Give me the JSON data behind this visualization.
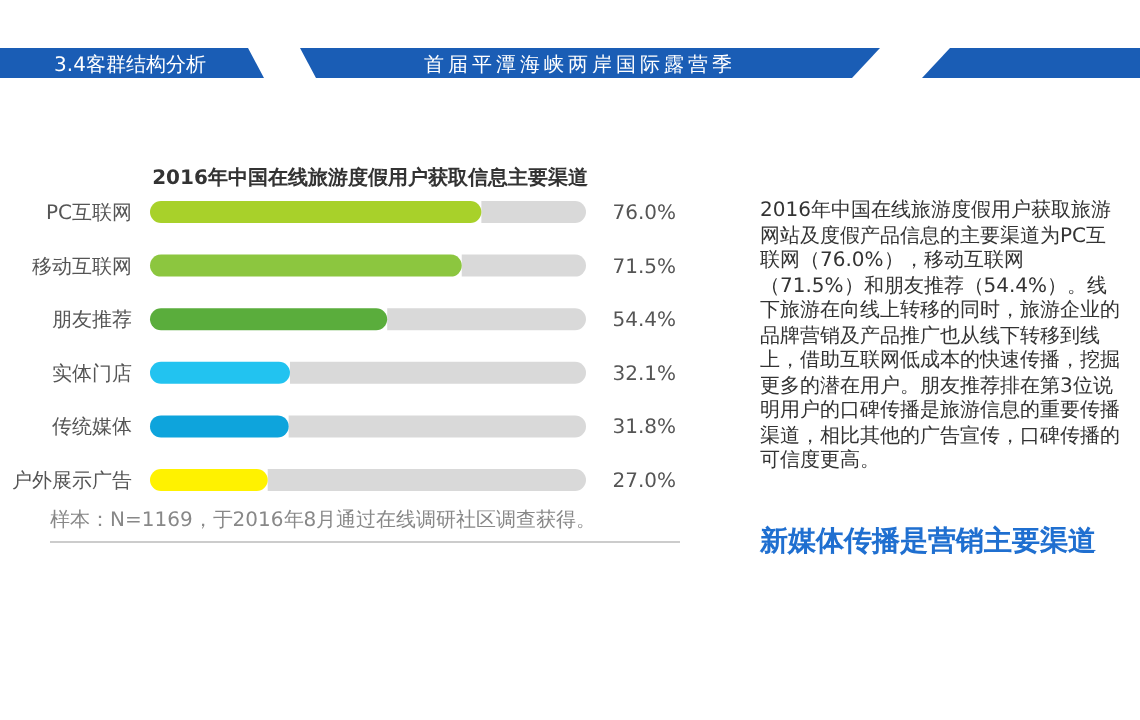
{
  "chart_data": {
    "type": "bar",
    "orientation": "horizontal",
    "title": "2016年中国在线旅游度假用户获取信息主要渠道",
    "categories": [
      "PC互联网",
      "移动互联网",
      "朋友推荐",
      "实体门店",
      "传统媒体",
      "户外展示广告"
    ],
    "values": [
      76.0,
      71.5,
      54.4,
      32.1,
      31.8,
      27.0
    ],
    "colors": [
      "#a8d12a",
      "#8cc63f",
      "#5aad3c",
      "#22c3f0",
      "#0ea4dc",
      "#fff200"
    ],
    "value_labels": [
      "76.0%",
      "71.5%",
      "54.4%",
      "32.1%",
      "31.8%",
      "27.0%"
    ],
    "annotations": [
      "3.4客群结构分析",
      "首届平潭海峡两岸国际露营季",
      "样本：N=1169，于2016年8月通过在线调研社区调查获得。",
      "2016年中国在线旅游度假用户获取旅游网站及度假产品信息的主要渠道为PC互联网（76.0%），移动互联网（71.5%）和朋友推荐（54.4%）。线下旅游在向线上转移的同时，旅游企业的品牌营销及产品推广也从线下转移到线上，借助互联网低成本的快速传播，挖掘更多的潜在用户。朋友推荐排在第3位说明用户的口碑传播是旅游信息的重要传播渠道，相比其他的广告宣传，口碑传播的可信度更高。",
      "新媒体传播是营销主要渠道"
    ]
  }
}
